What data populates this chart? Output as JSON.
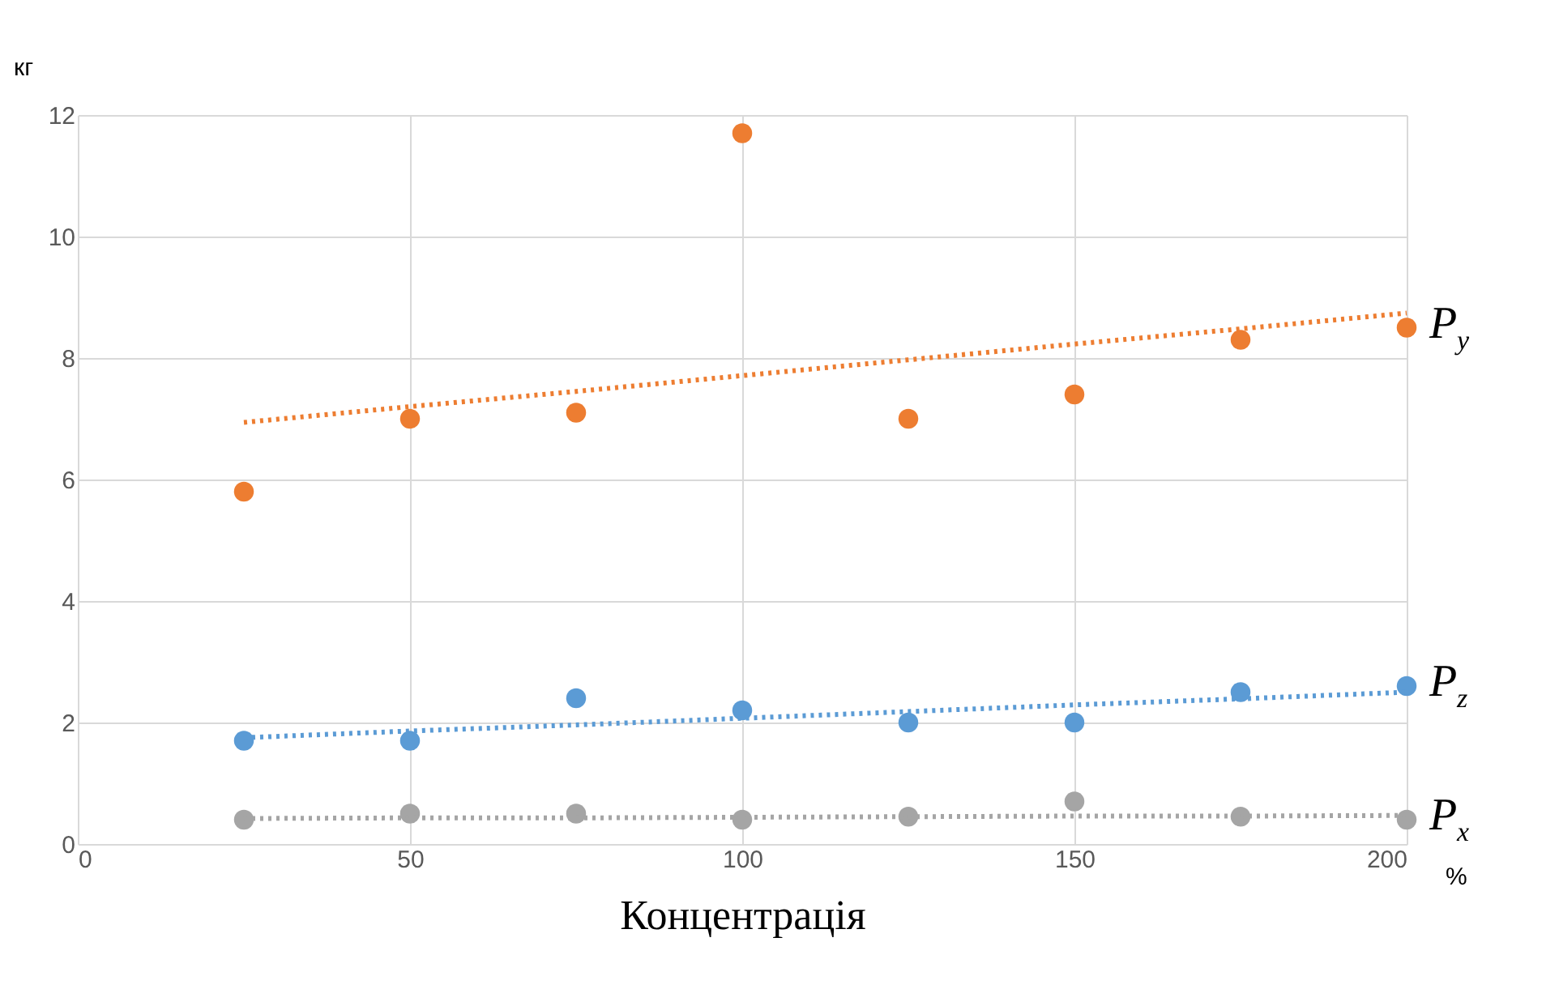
{
  "chart_data": {
    "type": "scatter",
    "xlabel": "Концентрація",
    "ylabel": "кг",
    "annotations": [
      "%"
    ],
    "x": [
      25,
      50,
      75,
      100,
      125,
      150,
      175,
      200
    ],
    "xlim": [
      0,
      200
    ],
    "xticks": [
      0,
      50,
      100,
      150,
      200
    ],
    "ylim": [
      0,
      12
    ],
    "yticks": [
      0,
      2,
      4,
      6,
      8,
      10,
      12
    ],
    "grid": true,
    "series": [
      {
        "name": "P$_{y}$",
        "marker": "circle",
        "color": "#ed7d31",
        "values": [
          5.8,
          7.0,
          7.1,
          11.7,
          7.0,
          7.4,
          8.3,
          8.5
        ]
      },
      {
        "type": "line",
        "color": "#ed7d31",
        "values": [
          6.94,
          7.2,
          7.45,
          7.71,
          7.97,
          8.23,
          8.48,
          8.74
        ],
        "line_style": "dotted"
      },
      {
        "name": "P$_{z}$",
        "marker": "circle",
        "color": "#5b9bd5",
        "values": [
          1.7,
          1.7,
          2.4,
          2.2,
          2.0,
          2.0,
          2.5,
          2.6
        ]
      },
      {
        "type": "line",
        "color": "#5b9bd5",
        "values": [
          1.75,
          1.86,
          1.96,
          2.07,
          2.18,
          2.29,
          2.39,
          2.5
        ],
        "line_style": "dotted"
      },
      {
        "name": "P$_{x}$",
        "marker": "circle",
        "color": "#a5a5a5",
        "values": [
          0.4,
          0.5,
          0.5,
          0.4,
          0.45,
          0.7,
          0.45,
          0.4
        ]
      },
      {
        "type": "line",
        "color": "#a5a5a5",
        "values": [
          0.42,
          0.43,
          0.43,
          0.44,
          0.45,
          0.46,
          0.46,
          0.47
        ],
        "line_style": "dotted"
      }
    ]
  }
}
